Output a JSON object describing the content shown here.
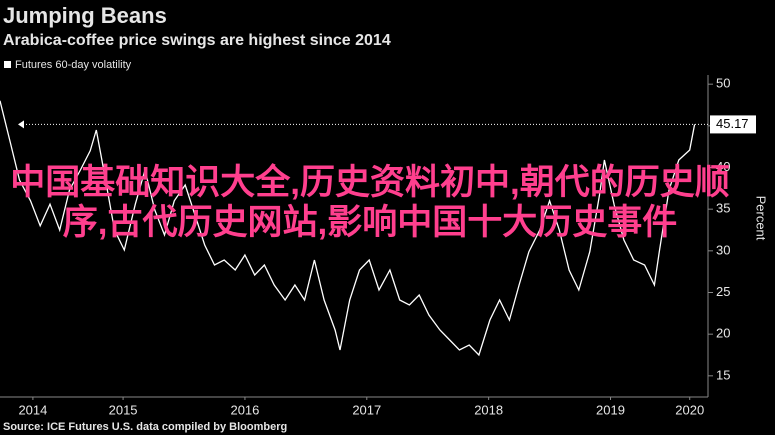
{
  "chart_data": {
    "type": "line",
    "title": "Jumping Beans",
    "subtitle": "Arabica-coffee price swings are highest since 2014",
    "y_label": "Percent",
    "source": "Source: ICE Futures U.S. data compiled by Bloomberg",
    "overlay": "中国基础知识大全,历史资料初中,朝代的历史顺序,古代历史网站,影响中国十大历史事件",
    "x": [
      2014.49,
      2014.57,
      2014.65,
      2014.74,
      2014.82,
      2014.9,
      2014.98,
      2015.06,
      2015.15,
      2015.23,
      2015.28,
      2015.35,
      2015.43,
      2015.51,
      2015.6,
      2015.68,
      2015.76,
      2015.84,
      2015.92,
      2016.01,
      2016.09,
      2016.17,
      2016.25,
      2016.33,
      2016.42,
      2016.5,
      2016.58,
      2016.66,
      2016.74,
      2016.83,
      2016.91,
      2016.99,
      2017.07,
      2017.15,
      2017.24,
      2017.28,
      2017.36,
      2017.44,
      2017.52,
      2017.6,
      2017.69,
      2017.77,
      2017.85,
      2017.93,
      2018.01,
      2018.1,
      2018.18,
      2018.26,
      2018.34,
      2018.42,
      2018.51,
      2018.59,
      2018.67,
      2018.75,
      2018.83,
      2018.92,
      2019.0,
      2019.08,
      2019.16,
      2019.24,
      2019.33,
      2019.41,
      2019.45,
      2019.53,
      2019.61,
      2019.69,
      2019.78,
      2019.86,
      2019.9,
      2019.98,
      2020.06,
      2020.15,
      2020.19
    ],
    "series": [
      {
        "name": "Futures 60-day volatility",
        "color": "#ffffff",
        "values": [
          48,
          43.3,
          38.5,
          36,
          33,
          35.6,
          32.5,
          37.3,
          39.7,
          42,
          44.5,
          39,
          32.5,
          30.1,
          35.6,
          39.7,
          34.9,
          31.9,
          36,
          37.9,
          34.3,
          30.7,
          28.3,
          28.9,
          27.7,
          29.5,
          27.1,
          28.3,
          25.9,
          24.1,
          25.9,
          24.1,
          28.9,
          24.1,
          20.5,
          18.1,
          24.1,
          27.7,
          28.9,
          25.3,
          27.7,
          24.1,
          23.5,
          24.7,
          22.3,
          20.5,
          19.3,
          18.1,
          18.7,
          17.5,
          21.7,
          24.1,
          21.7,
          25.9,
          29.9,
          32.5,
          36,
          32.5,
          27.7,
          25.3,
          29.9,
          36.7,
          40.9,
          35.5,
          31.3,
          28.9,
          28.3,
          25.9,
          29.9,
          37.3,
          40.9,
          42.1,
          45.17
        ]
      }
    ],
    "xlim": [
      2014.49,
      2020.3
    ],
    "xticks": [
      {
        "value": 2014.76,
        "label": "2014"
      },
      {
        "value": 2015.5,
        "label": "2015"
      },
      {
        "value": 2016.5,
        "label": "2016"
      },
      {
        "value": 2017.5,
        "label": "2017"
      },
      {
        "value": 2018.5,
        "label": "2018"
      },
      {
        "value": 2019.5,
        "label": "2019"
      },
      {
        "value": 2020.15,
        "label": "2020"
      }
    ],
    "ylim": [
      13.3,
      51.1
    ],
    "yticks": [
      15,
      20,
      25,
      30,
      35,
      40,
      45,
      50
    ],
    "grid": false
  }
}
